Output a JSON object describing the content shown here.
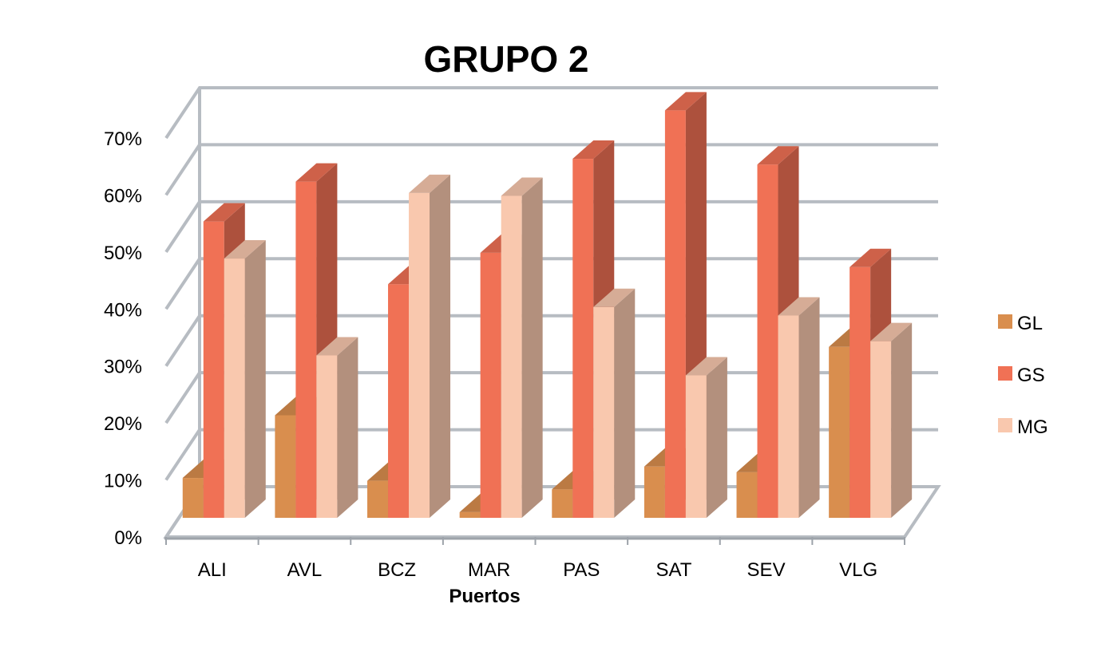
{
  "chart_data": {
    "type": "bar",
    "title": "GRUPO 2",
    "xlabel": "Puertos",
    "ylabel": "",
    "categories": [
      "ALI",
      "AVL",
      "BCZ",
      "MAR",
      "PAS",
      "SAT",
      "SEV",
      "VLG"
    ],
    "yticks": [
      "0%",
      "10%",
      "20%",
      "30%",
      "40%",
      "50%",
      "60%",
      "70%"
    ],
    "ylim": [
      0,
      70
    ],
    "grid": true,
    "legend_position": "right",
    "series": [
      {
        "name": "GL",
        "color": "#D98E4E",
        "values": [
          7,
          18,
          6.5,
          1,
          5,
          9,
          8,
          30
        ]
      },
      {
        "name": "GS",
        "color": "#F07155",
        "values": [
          52,
          59,
          41,
          46.5,
          63,
          71.5,
          62,
          44
        ]
      },
      {
        "name": "MG",
        "color": "#F9C8AE",
        "values": [
          45.5,
          28.5,
          57,
          56.5,
          37,
          25,
          35.5,
          31
        ]
      }
    ]
  }
}
